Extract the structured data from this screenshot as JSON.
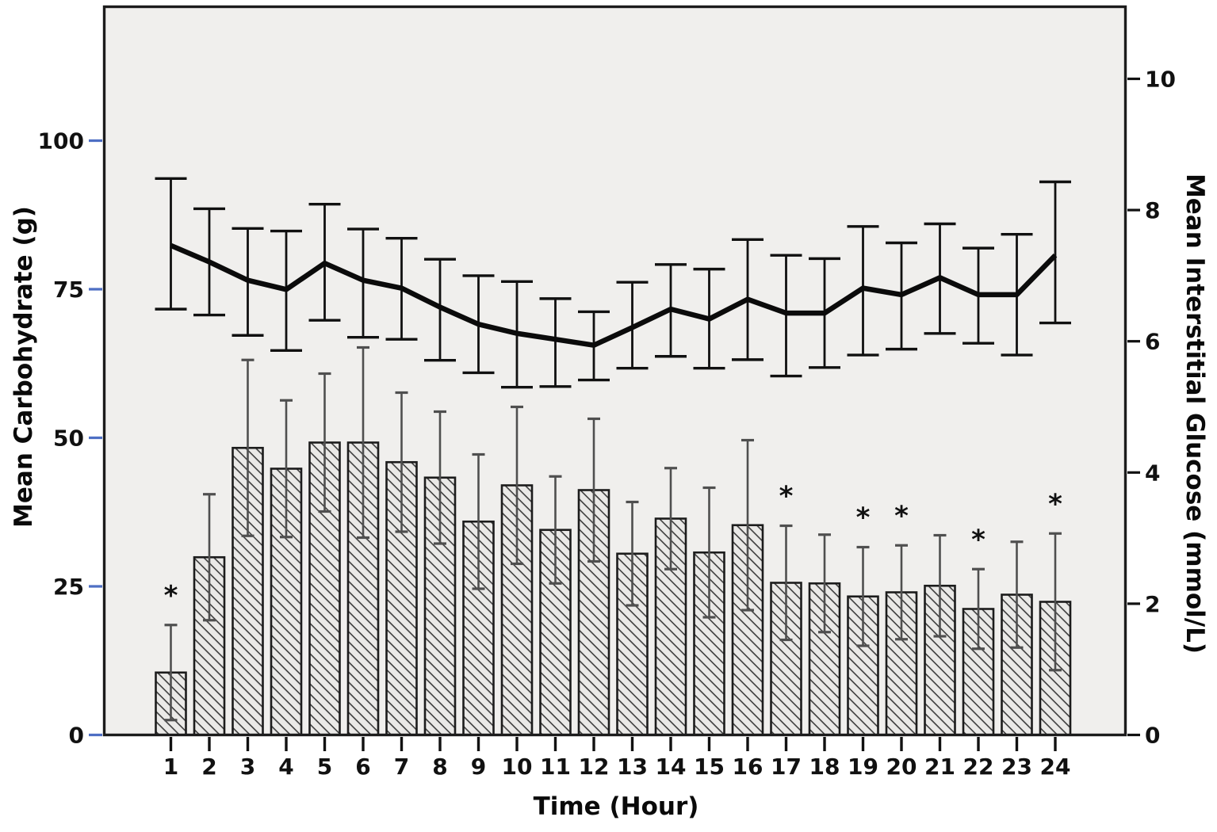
{
  "figure": {
    "kind": "clinical combo chart: hourly carbohydrate intake bars with interstitial glucose line",
    "significance_marker": "*"
  },
  "chart_data": {
    "type": "bar+line",
    "x_axis": {
      "label": "Time (Hour)",
      "ticks": [
        1,
        2,
        3,
        4,
        5,
        6,
        7,
        8,
        9,
        10,
        11,
        12,
        13,
        14,
        15,
        16,
        17,
        18,
        19,
        20,
        21,
        22,
        23,
        24
      ]
    },
    "left_axis": {
      "label": "Mean Carbohydrate (g)",
      "ticks": [
        0,
        25,
        50,
        75,
        100
      ],
      "range": [
        0,
        122.7
      ],
      "tick_color": "#4e6fc4"
    },
    "right_axis": {
      "label": "Mean Interstitial Glucose (mmol/L)",
      "ticks": [
        0,
        2,
        4,
        6,
        8,
        10
      ],
      "range": [
        0,
        11.1
      ],
      "tick_color": "#111111"
    },
    "series": [
      {
        "name": "Mean Carbohydrate (g)",
        "type": "bar",
        "axis": "left",
        "style": "diagonal-hatch",
        "values": [
          10.5,
          29.9,
          48.3,
          44.8,
          49.2,
          49.2,
          45.9,
          43.3,
          35.9,
          42.0,
          34.5,
          41.2,
          30.5,
          36.4,
          30.7,
          35.3,
          25.6,
          25.5,
          23.3,
          24.0,
          25.1,
          21.2,
          23.6,
          22.4
        ],
        "upper_errors": [
          8.0,
          10.6,
          14.8,
          11.5,
          11.6,
          16.0,
          11.7,
          11.1,
          11.3,
          13.2,
          9.0,
          12.0,
          8.7,
          8.5,
          10.9,
          14.3,
          9.6,
          8.2,
          8.3,
          7.9,
          8.5,
          6.7,
          8.9,
          11.5
        ],
        "significant_hours": [
          1,
          17,
          19,
          20,
          22,
          24
        ]
      },
      {
        "name": "Mean Interstitial Glucose (mmol/L)",
        "type": "line",
        "axis": "right",
        "color": "#0b0b0b",
        "values": [
          7.46,
          7.21,
          6.93,
          6.79,
          7.19,
          6.93,
          6.81,
          6.52,
          6.26,
          6.12,
          6.03,
          5.94,
          6.21,
          6.49,
          6.34,
          6.64,
          6.43,
          6.43,
          6.81,
          6.71,
          6.97,
          6.71,
          6.71,
          7.31
        ],
        "error_upper": [
          8.48,
          8.02,
          7.72,
          7.68,
          8.09,
          7.71,
          7.57,
          7.25,
          7.0,
          6.91,
          6.65,
          6.45,
          6.9,
          7.17,
          7.1,
          7.55,
          7.31,
          7.26,
          7.75,
          7.5,
          7.79,
          7.42,
          7.63,
          8.43
        ],
        "error_lower": [
          6.49,
          6.4,
          6.09,
          5.86,
          6.32,
          6.06,
          6.03,
          5.71,
          5.52,
          5.3,
          5.31,
          5.41,
          5.59,
          5.77,
          5.59,
          5.72,
          5.47,
          5.6,
          5.79,
          5.88,
          6.12,
          5.97,
          5.79,
          6.28
        ]
      }
    ],
    "legend": "none",
    "grid": "off",
    "plot_bg_color": "#f0efed",
    "bar_fill_color": "#eae9e7",
    "bar_stripe_color": "#3d3d3d",
    "bar_border_color": "#1c1c1c",
    "bar_error_color": "#4f4f4f",
    "frame_color": "#1c1c1c"
  }
}
